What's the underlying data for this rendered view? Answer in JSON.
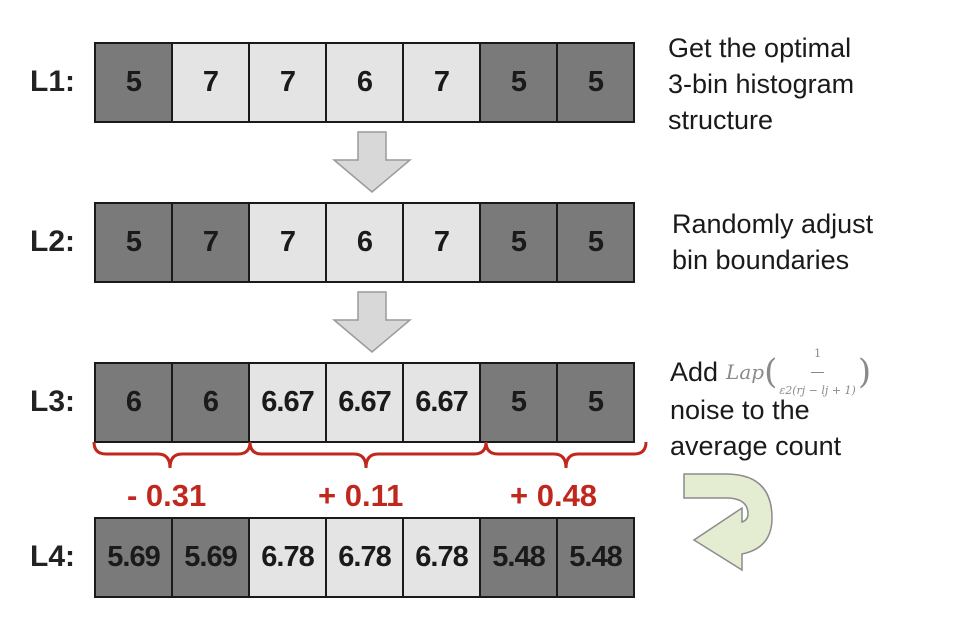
{
  "rows": [
    {
      "label": "L1:",
      "cells": [
        {
          "value": "5",
          "shade": "dark"
        },
        {
          "value": "7",
          "shade": "light"
        },
        {
          "value": "7",
          "shade": "light"
        },
        {
          "value": "6",
          "shade": "light"
        },
        {
          "value": "7",
          "shade": "light"
        },
        {
          "value": "5",
          "shade": "dark"
        },
        {
          "value": "5",
          "shade": "dark"
        }
      ]
    },
    {
      "label": "L2:",
      "cells": [
        {
          "value": "5",
          "shade": "dark"
        },
        {
          "value": "7",
          "shade": "dark"
        },
        {
          "value": "7",
          "shade": "light"
        },
        {
          "value": "6",
          "shade": "light"
        },
        {
          "value": "7",
          "shade": "light"
        },
        {
          "value": "5",
          "shade": "dark"
        },
        {
          "value": "5",
          "shade": "dark"
        }
      ]
    },
    {
      "label": "L3:",
      "cells": [
        {
          "value": "6",
          "shade": "dark"
        },
        {
          "value": "6",
          "shade": "dark"
        },
        {
          "value": "6.67",
          "shade": "light"
        },
        {
          "value": "6.67",
          "shade": "light"
        },
        {
          "value": "6.67",
          "shade": "light"
        },
        {
          "value": "5",
          "shade": "dark"
        },
        {
          "value": "5",
          "shade": "dark"
        }
      ]
    },
    {
      "label": "L4:",
      "cells": [
        {
          "value": "5.69",
          "shade": "dark"
        },
        {
          "value": "5.69",
          "shade": "dark"
        },
        {
          "value": "6.78",
          "shade": "light"
        },
        {
          "value": "6.78",
          "shade": "light"
        },
        {
          "value": "6.78",
          "shade": "light"
        },
        {
          "value": "5.48",
          "shade": "dark"
        },
        {
          "value": "5.48",
          "shade": "dark"
        }
      ]
    }
  ],
  "notes": {
    "step1": [
      "Get the optimal",
      "3-bin histogram",
      "structure"
    ],
    "step2": [
      "Randomly adjust",
      "bin boundaries"
    ],
    "step3": {
      "prefix": "Add",
      "lap_name": "Lap",
      "lap_numerator": "1",
      "lap_denominator": "ε2(rj − lj + 1)",
      "line2": "noise to the",
      "line3": "average count"
    }
  },
  "noise_values": [
    "- 0.31",
    "+ 0.11",
    "+ 0.48"
  ],
  "colors": {
    "dark_cell": "#7a7a7a",
    "light_cell": "#e4e4e4",
    "brace": "#c0281e",
    "noise_text": "#c0281e",
    "arrow": "#d8d8d8",
    "curved_arrow": "#e4ecd2"
  }
}
